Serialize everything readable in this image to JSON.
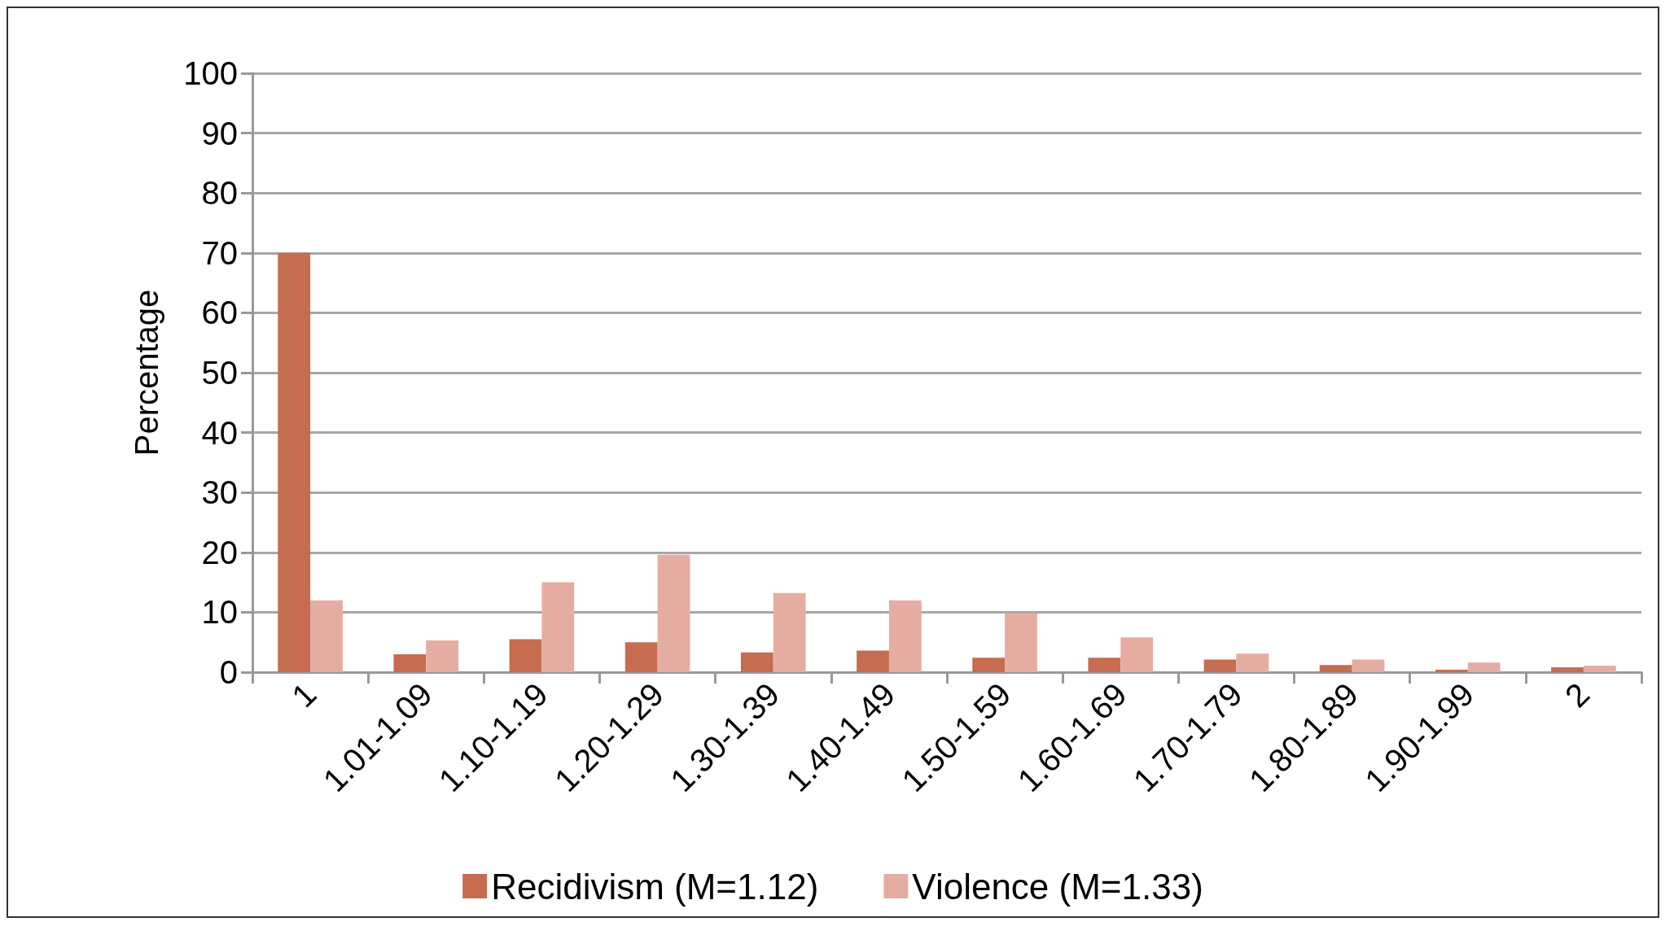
{
  "chart_data": {
    "type": "bar",
    "ylabel": "Percentage",
    "categories": [
      "1",
      "1.01-1.09",
      "1.10-1.19",
      "1.20-1.29",
      "1.30-1.39",
      "1.40-1.49",
      "1.50-1.59",
      "1.60-1.69",
      "1.70-1.79",
      "1.80-1.89",
      "1.90-1.99",
      "2"
    ],
    "series": [
      {
        "name": "Recidivism (M=1.12)",
        "color": "#c66c50",
        "values": [
          70,
          3,
          5.5,
          5,
          3.3,
          3.6,
          2.4,
          2.4,
          2.1,
          1.2,
          0.4,
          0.8
        ]
      },
      {
        "name": "Violence (M=1.33)",
        "color": "#e5ada2",
        "values": [
          12,
          5.3,
          15,
          19.6,
          13.2,
          12,
          9.8,
          5.8,
          3.1,
          2.1,
          1.6,
          1.1
        ]
      }
    ],
    "ylim": [
      0,
      100
    ],
    "yticks": [
      0,
      10,
      20,
      30,
      40,
      50,
      60,
      70,
      80,
      90,
      100
    ],
    "grid": "y",
    "legend": "bottom"
  }
}
